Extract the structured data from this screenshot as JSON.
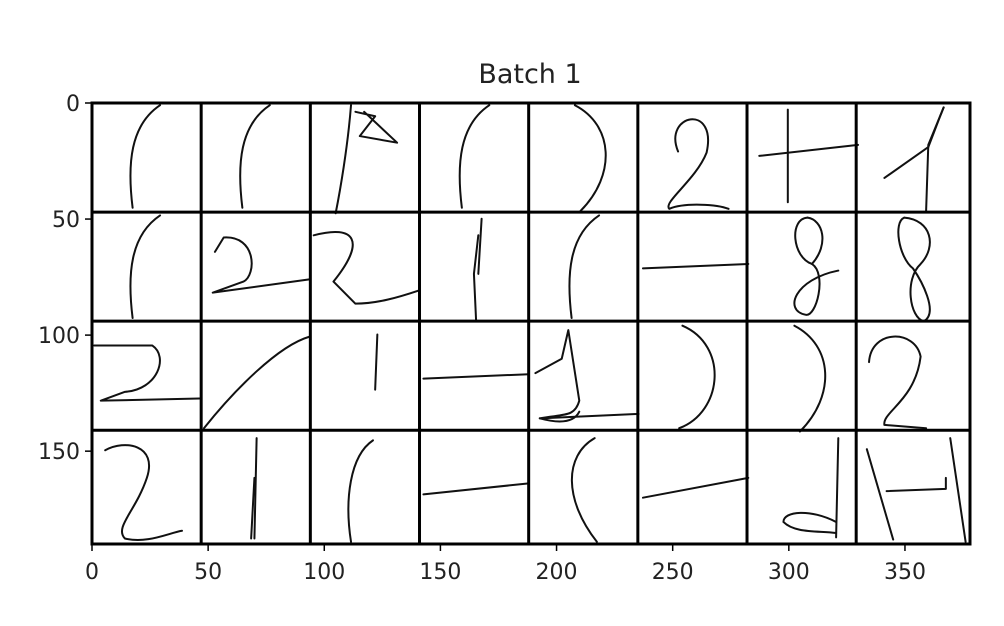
{
  "chart_data": {
    "type": "image_grid",
    "title": "Batch 1",
    "rows": 4,
    "cols": 8,
    "image_extent": {
      "x": [
        0,
        378
      ],
      "y": [
        0,
        190
      ]
    },
    "xlim": [
      0,
      378
    ],
    "ylim": [
      190,
      0
    ],
    "x_ticks": [
      0,
      50,
      100,
      150,
      200,
      250,
      300,
      350
    ],
    "y_ticks": [
      0,
      50,
      100,
      150
    ],
    "grid_lines_x": [
      47,
      94,
      141,
      188,
      235,
      282,
      329
    ],
    "grid_lines_y": [
      47,
      94,
      141
    ],
    "tiles": [
      [
        "(",
        "(",
        "(B",
        "(",
        ")",
        "2",
        "+",
        "1"
      ],
      [
        "(",
        "2",
        "2",
        "1",
        "(",
        "-",
        "8",
        "8"
      ],
      [
        "2",
        "/",
        "1",
        "-",
        "1",
        ")",
        ")",
        "2"
      ],
      [
        "2",
        "1",
        "(",
        "-",
        "(",
        "-",
        "d",
        "H"
      ]
    ]
  }
}
